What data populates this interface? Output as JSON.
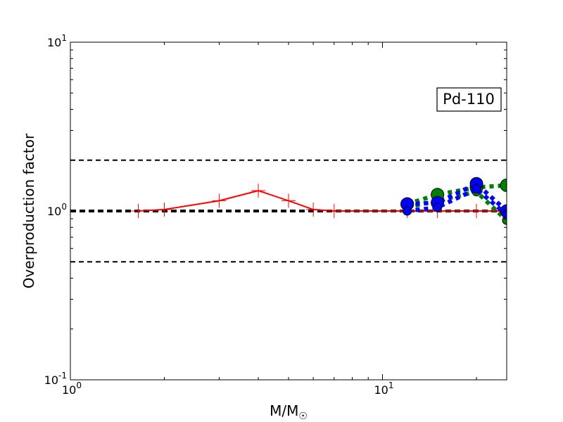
{
  "chart_data": {
    "type": "line",
    "xscale": "log",
    "yscale": "log",
    "xlim": [
      1,
      25
    ],
    "ylim": [
      0.1,
      10
    ],
    "xlabel": "M/M",
    "xlabel_sub": "☉",
    "ylabel": "Overproduction factor",
    "x_ticks": [
      {
        "value": 1,
        "base": "10",
        "exp": "0"
      },
      {
        "value": 10,
        "base": "10",
        "exp": "1"
      }
    ],
    "y_ticks": [
      {
        "value": 0.1,
        "base": "10",
        "exp": "-1"
      },
      {
        "value": 1,
        "base": "10",
        "exp": "0"
      },
      {
        "value": 10,
        "base": "10",
        "exp": "1"
      }
    ],
    "annotation": "Pd-110",
    "reference_lines": [
      {
        "y": 2.0,
        "style": "dashed",
        "color": "#000000",
        "width": 2
      },
      {
        "y": 1.0,
        "style": "dashed",
        "color": "#000000",
        "width": 4
      },
      {
        "y": 0.5,
        "style": "dashed",
        "color": "#000000",
        "width": 2
      }
    ],
    "series": [
      {
        "color": "#ff0000",
        "style": "solid",
        "marker": "plus",
        "x": [
          1.65,
          2.0,
          3.0,
          4.0,
          5.0,
          6.0,
          7.0,
          12.0,
          15.0,
          20.0,
          25.0
        ],
        "y": [
          1.0,
          1.02,
          1.15,
          1.32,
          1.15,
          1.02,
          1.0,
          1.0,
          1.0,
          1.0,
          1.0
        ]
      },
      {
        "color": "#008000",
        "style": "dotted",
        "marker": "circle",
        "x": [
          12.0,
          15.0,
          20.0,
          25.0
        ],
        "y": [
          1.1,
          1.25,
          1.38,
          1.42
        ]
      },
      {
        "color": "#008000",
        "style": "dotted",
        "marker": "circle",
        "x": [
          12.0,
          15.0,
          20.0,
          25.0
        ],
        "y": [
          1.05,
          1.15,
          1.3,
          0.88
        ]
      },
      {
        "color": "#0000ff",
        "style": "dotted",
        "marker": "circle",
        "x": [
          12.0,
          15.0,
          20.0,
          25.0
        ],
        "y": [
          1.1,
          1.12,
          1.45,
          1.0
        ]
      },
      {
        "color": "#0000ff",
        "style": "dotted",
        "marker": "circle",
        "x": [
          12.0,
          15.0,
          20.0,
          25.0
        ],
        "y": [
          1.0,
          1.05,
          1.35,
          0.95
        ]
      }
    ]
  }
}
